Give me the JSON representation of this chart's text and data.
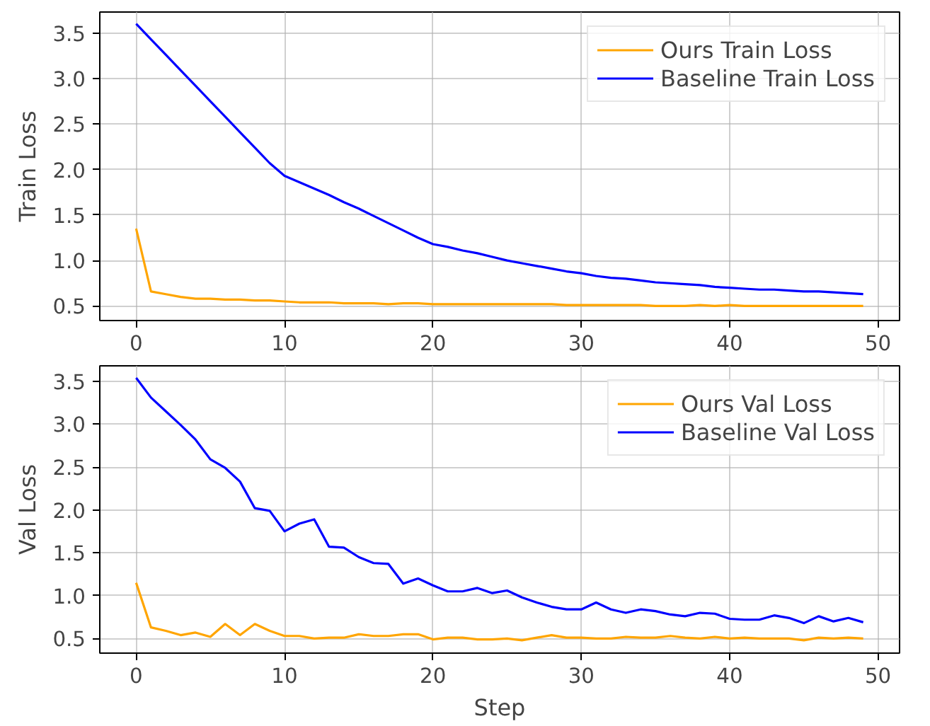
{
  "chart_data": [
    {
      "type": "line",
      "ylabel": "Train Loss",
      "x": [
        0,
        1,
        2,
        3,
        4,
        5,
        6,
        7,
        8,
        9,
        10,
        11,
        12,
        13,
        14,
        15,
        16,
        17,
        18,
        19,
        20,
        21,
        22,
        23,
        24,
        25,
        26,
        27,
        28,
        29,
        30,
        31,
        32,
        33,
        34,
        35,
        36,
        37,
        38,
        39,
        40,
        41,
        42,
        43,
        44,
        45,
        46,
        47,
        48,
        49
      ],
      "series": [
        {
          "name": "Ours Train Loss",
          "color": "#ffa500",
          "values": [
            1.35,
            0.66,
            0.63,
            0.6,
            0.58,
            0.58,
            0.57,
            0.57,
            0.56,
            0.56,
            0.55,
            0.54,
            0.54,
            0.54,
            0.53,
            0.53,
            0.53,
            0.52,
            0.53,
            0.53,
            0.52,
            0.52,
            0.52,
            0.52,
            0.52,
            0.52,
            0.52,
            0.52,
            0.52,
            0.51,
            0.51,
            0.51,
            0.51,
            0.51,
            0.51,
            0.5,
            0.5,
            0.5,
            0.51,
            0.5,
            0.51,
            0.5,
            0.5,
            0.5,
            0.5,
            0.5,
            0.5,
            0.5,
            0.5,
            0.5
          ]
        },
        {
          "name": "Baseline Train Loss",
          "color": "#0000ff",
          "values": [
            3.6,
            3.43,
            3.26,
            3.09,
            2.92,
            2.75,
            2.58,
            2.41,
            2.24,
            2.07,
            1.93,
            1.86,
            1.79,
            1.72,
            1.64,
            1.57,
            1.49,
            1.41,
            1.33,
            1.25,
            1.18,
            1.15,
            1.11,
            1.08,
            1.04,
            1.0,
            0.97,
            0.94,
            0.91,
            0.88,
            0.86,
            0.83,
            0.81,
            0.8,
            0.78,
            0.76,
            0.75,
            0.74,
            0.73,
            0.71,
            0.7,
            0.69,
            0.68,
            0.68,
            0.67,
            0.66,
            0.66,
            0.65,
            0.64,
            0.63
          ]
        }
      ],
      "xlim": [
        -2.45,
        51.45
      ],
      "ylim": [
        0.34,
        3.73
      ],
      "xticks": [
        0,
        10,
        20,
        30,
        40,
        50
      ],
      "yticks": [
        0.5,
        {
          "value": 1,
          "label": "1.0"
        },
        1.5,
        {
          "value": 2,
          "label": "2.0"
        },
        2.5,
        {
          "value": 3,
          "label": "3.0"
        },
        3.5
      ],
      "grid": true,
      "legend": "top right"
    },
    {
      "type": "line",
      "xlabel": "Step",
      "ylabel": "Val Loss",
      "x": [
        0,
        1,
        2,
        3,
        4,
        5,
        6,
        7,
        8,
        9,
        10,
        11,
        12,
        13,
        14,
        15,
        16,
        17,
        18,
        19,
        20,
        21,
        22,
        23,
        24,
        25,
        26,
        27,
        28,
        29,
        30,
        31,
        32,
        33,
        34,
        35,
        36,
        37,
        38,
        39,
        40,
        41,
        42,
        43,
        44,
        45,
        46,
        47,
        48,
        49
      ],
      "series": [
        {
          "name": "Ours Val Loss",
          "color": "#ffa500",
          "values": [
            1.15,
            0.63,
            0.59,
            0.54,
            0.57,
            0.52,
            0.67,
            0.54,
            0.67,
            0.59,
            0.53,
            0.53,
            0.5,
            0.51,
            0.51,
            0.55,
            0.53,
            0.53,
            0.55,
            0.55,
            0.49,
            0.51,
            0.51,
            0.49,
            0.49,
            0.5,
            0.48,
            0.51,
            0.54,
            0.51,
            0.51,
            0.5,
            0.5,
            0.52,
            0.51,
            0.51,
            0.53,
            0.51,
            0.5,
            0.52,
            0.5,
            0.51,
            0.5,
            0.5,
            0.5,
            0.48,
            0.51,
            0.5,
            0.51,
            0.5
          ]
        },
        {
          "name": "Baseline Val Loss",
          "color": "#0000ff",
          "values": [
            3.54,
            3.31,
            3.15,
            2.99,
            2.82,
            2.59,
            2.49,
            2.33,
            2.02,
            1.99,
            1.75,
            1.84,
            1.89,
            1.57,
            1.56,
            1.45,
            1.38,
            1.37,
            1.14,
            1.2,
            1.12,
            1.05,
            1.05,
            1.09,
            1.03,
            1.06,
            0.98,
            0.92,
            0.87,
            0.84,
            0.84,
            0.92,
            0.84,
            0.8,
            0.84,
            0.82,
            0.78,
            0.76,
            0.8,
            0.79,
            0.73,
            0.72,
            0.72,
            0.77,
            0.74,
            0.68,
            0.76,
            0.7,
            0.74,
            0.69
          ]
        }
      ],
      "xlim": [
        -2.45,
        51.45
      ],
      "ylim": [
        0.33,
        3.68
      ],
      "xticks": [
        0,
        10,
        20,
        30,
        40,
        50
      ],
      "yticks": [
        0.5,
        {
          "value": 1,
          "label": "1.0"
        },
        1.5,
        {
          "value": 2,
          "label": "2.0"
        },
        2.5,
        {
          "value": 3,
          "label": "3.0"
        },
        3.5
      ],
      "grid": true,
      "legend": "top right"
    }
  ]
}
